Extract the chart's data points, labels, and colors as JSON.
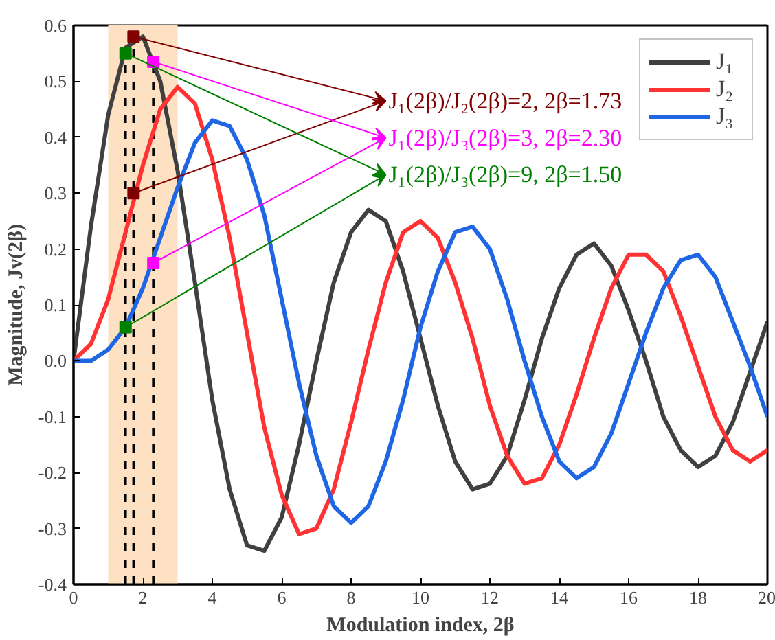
{
  "chart_data": {
    "type": "line",
    "xlabel": "Modulation index, 2β",
    "ylabel": "Magnitude, Jv(2β)",
    "x": [
      0,
      0.5,
      1,
      1.5,
      2,
      2.5,
      3,
      3.5,
      4,
      4.5,
      5,
      5.5,
      6,
      6.5,
      7,
      7.5,
      8,
      8.5,
      9,
      9.5,
      10,
      10.5,
      11,
      11.5,
      12,
      12.5,
      13,
      13.5,
      14,
      14.5,
      15,
      15.5,
      16,
      16.5,
      17,
      17.5,
      18,
      18.5,
      19,
      19.5,
      20
    ],
    "series": [
      {
        "name": "J₁",
        "color": "#404040",
        "values": [
          0,
          0.24,
          0.44,
          0.56,
          0.58,
          0.5,
          0.34,
          0.14,
          -0.07,
          -0.23,
          -0.33,
          -0.34,
          -0.28,
          -0.15,
          0,
          0.14,
          0.23,
          0.27,
          0.25,
          0.16,
          0.04,
          -0.08,
          -0.18,
          -0.23,
          -0.22,
          -0.17,
          -0.07,
          0.04,
          0.13,
          0.19,
          0.21,
          0.17,
          0.09,
          0,
          -0.1,
          -0.16,
          -0.19,
          -0.17,
          -0.11,
          -0.02,
          0.07
        ]
      },
      {
        "name": "J₂",
        "color": "#ff3333",
        "values": [
          0,
          0.03,
          0.11,
          0.23,
          0.35,
          0.45,
          0.49,
          0.46,
          0.36,
          0.22,
          0.05,
          -0.12,
          -0.24,
          -0.31,
          -0.3,
          -0.23,
          -0.11,
          0.02,
          0.14,
          0.23,
          0.25,
          0.22,
          0.14,
          0.04,
          -0.08,
          -0.17,
          -0.22,
          -0.21,
          -0.15,
          -0.06,
          0.04,
          0.13,
          0.19,
          0.19,
          0.16,
          0.08,
          -0.01,
          -0.1,
          -0.16,
          -0.18,
          -0.16
        ]
      },
      {
        "name": "J₃",
        "color": "#1f66e5",
        "values": [
          0,
          0,
          0.02,
          0.06,
          0.13,
          0.22,
          0.31,
          0.39,
          0.43,
          0.42,
          0.36,
          0.26,
          0.11,
          -0.04,
          -0.17,
          -0.26,
          -0.29,
          -0.26,
          -0.18,
          -0.07,
          0.06,
          0.16,
          0.23,
          0.24,
          0.2,
          0.11,
          0,
          -0.1,
          -0.18,
          -0.21,
          -0.19,
          -0.13,
          -0.04,
          0.05,
          0.13,
          0.18,
          0.19,
          0.15,
          0.07,
          -0.01,
          -0.1
        ]
      },
      {
        "type": "scatter",
        "marker": "square",
        "x": [
          1.73,
          1.73
        ],
        "color": "#800000",
        "values": [
          0.58,
          0.3
        ]
      },
      {
        "type": "scatter",
        "marker": "square",
        "x": [
          2.3,
          2.3
        ],
        "color": "#ff00ff",
        "values": [
          0.535,
          0.175
        ]
      },
      {
        "type": "scatter",
        "marker": "square",
        "x": [
          1.5,
          1.5
        ],
        "color": "#008000",
        "values": [
          0.55,
          0.06
        ]
      }
    ],
    "annotations": [
      {
        "text": "J₁(2β)/J₂(2β)=2, 2β=1.73",
        "x": 1.73,
        "y": 0.58
      },
      {
        "text": "J₁(2β)/J₃(2β)=3, 2β=2.30",
        "x": 2.3,
        "y": 0.535
      },
      {
        "text": "J₁(2β)/J₃(2β)=9, 2β=1.50",
        "x": 1.5,
        "y": 0.55
      }
    ],
    "bands": [
      {
        "axis": "x",
        "from": 1,
        "to": 3,
        "color": "#fde1c2"
      }
    ],
    "ref_lines": [
      {
        "axis": "x",
        "value": 1.5,
        "color": "#000000",
        "line_style": "dashed"
      },
      {
        "axis": "x",
        "value": 1.73,
        "color": "#000000",
        "line_style": "dashed"
      },
      {
        "axis": "x",
        "value": 2.3,
        "color": "#000000",
        "line_style": "dashed"
      }
    ],
    "xlim": [
      0,
      20
    ],
    "ylim": [
      -0.4,
      0.6
    ],
    "xticks": [
      0,
      2,
      4,
      6,
      8,
      10,
      12,
      14,
      16,
      18,
      20
    ],
    "yticks": [
      -0.4,
      -0.3,
      -0.2,
      -0.1,
      {
        "value": 0,
        "label": "0.0"
      },
      0.1,
      0.2,
      0.3,
      0.4,
      0.5,
      0.6
    ],
    "line_style": "solid",
    "legend": "top right",
    "grid": false
  }
}
